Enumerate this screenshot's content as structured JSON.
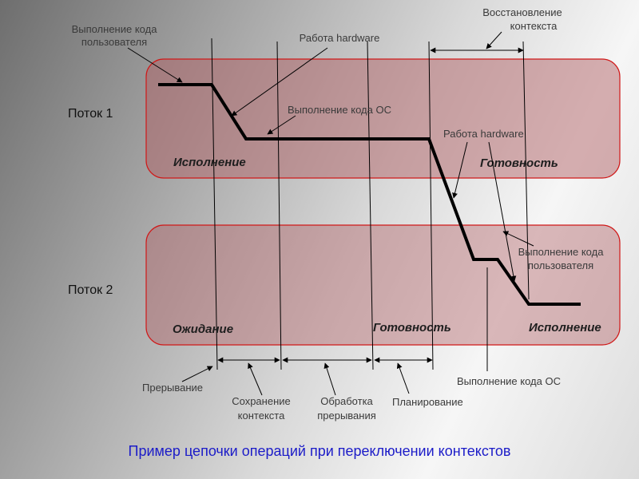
{
  "threads": {
    "thread1": "Поток 1",
    "thread2": "Поток 2"
  },
  "states": {
    "t1_exec": "Исполнение",
    "t1_ready": "Готовность",
    "t2_wait": "Ожидание",
    "t2_ready": "Готовность",
    "t2_exec": "Исполнение"
  },
  "labels": {
    "user_code_top_1": "Выполнение кода",
    "user_code_top_2": "пользователя",
    "hardware_top": "Работа hardware",
    "restore_1": "Восстановление",
    "restore_2": "контекста",
    "os_code_top": "Выполнение кода ОС",
    "hardware_mid": "Работа hardware",
    "user_code_right_1": "Выполнение кода",
    "user_code_right_2": "пользователя",
    "interrupt": "Прерывание",
    "save_1": "Сохранение",
    "save_2": "контекста",
    "handle_1": "Обработка",
    "handle_2": "прерывания",
    "planning": "Планирование",
    "os_code_bottom": "Выполнение кода ОС"
  },
  "caption": "Пример цепочки операций при переключении контекстов"
}
